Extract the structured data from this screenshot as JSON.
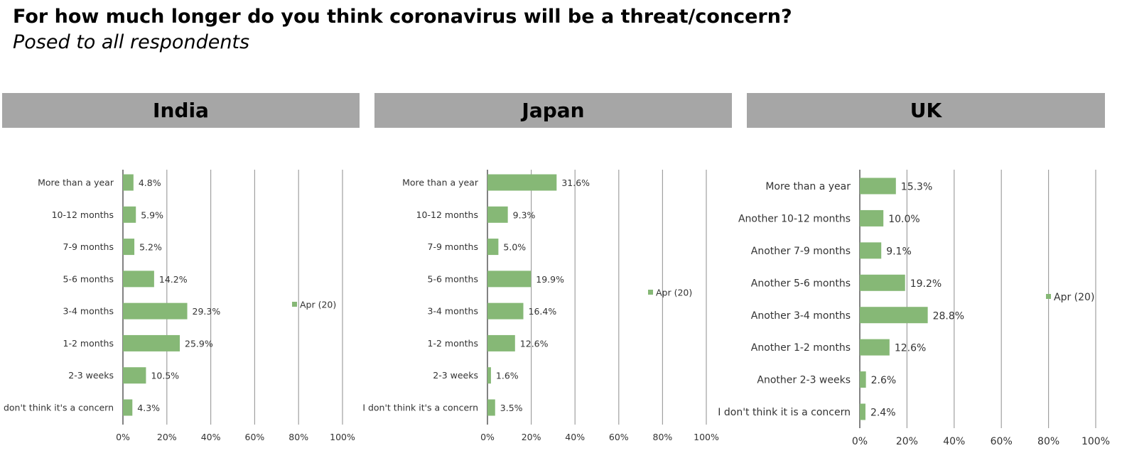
{
  "title": "For how much longer do you think coronavirus will be a threat/concern?",
  "subtitle": "Posed to all respondents",
  "colors": {
    "bar": "#86b876",
    "header_bg": "#a6a6a6",
    "grid": "#a0a0a0",
    "axis": "#595959"
  },
  "chart_data": [
    {
      "type": "bar",
      "orientation": "horizontal",
      "title": "India",
      "categories": [
        "More than a year",
        "10-12 months",
        "7-9 months",
        "5-6 months",
        "3-4 months",
        "1-2 months",
        "2-3 weeks",
        "I don't think it's a concern"
      ],
      "series": [
        {
          "name": "Apr (20)",
          "values": [
            4.8,
            5.9,
            5.2,
            14.2,
            29.3,
            25.9,
            10.5,
            4.3
          ]
        }
      ],
      "value_labels": [
        "4.8%",
        "5.9%",
        "5.2%",
        "14.2%",
        "29.3%",
        "25.9%",
        "10.5%",
        "4.3%"
      ],
      "xlim": [
        0,
        100
      ],
      "xticks": [
        "0%",
        "20%",
        "40%",
        "60%",
        "80%",
        "100%"
      ],
      "grid": true,
      "legend": "right"
    },
    {
      "type": "bar",
      "orientation": "horizontal",
      "title": "Japan",
      "categories": [
        "More than a year",
        "10-12 months",
        "7-9 months",
        "5-6 months",
        "3-4 months",
        "1-2 months",
        "2-3 weeks",
        "I don't think it's a concern"
      ],
      "series": [
        {
          "name": "Apr (20)",
          "values": [
            31.6,
            9.3,
            5.0,
            19.9,
            16.4,
            12.6,
            1.6,
            3.5
          ]
        }
      ],
      "value_labels": [
        "31.6%",
        "9.3%",
        "5.0%",
        "19.9%",
        "16.4%",
        "12.6%",
        "1.6%",
        "3.5%"
      ],
      "xlim": [
        0,
        100
      ],
      "xticks": [
        "0%",
        "20%",
        "40%",
        "60%",
        "80%",
        "100%"
      ],
      "grid": true,
      "legend": "right"
    },
    {
      "type": "bar",
      "orientation": "horizontal",
      "title": "UK",
      "categories": [
        "More than a year",
        "Another 10-12 months",
        "Another 7-9 months",
        "Another 5-6 months",
        "Another 3-4 months",
        "Another 1-2 months",
        "Another 2-3 weeks",
        "I don't think it is a concern"
      ],
      "series": [
        {
          "name": "Apr (20)",
          "values": [
            15.3,
            10.0,
            9.1,
            19.2,
            28.8,
            12.6,
            2.6,
            2.4
          ]
        }
      ],
      "value_labels": [
        "15.3%",
        "10.0%",
        "9.1%",
        "19.2%",
        "28.8%",
        "12.6%",
        "2.6%",
        "2.4%"
      ],
      "xlim": [
        0,
        100
      ],
      "xticks": [
        "0%",
        "20%",
        "40%",
        "60%",
        "80%",
        "100%"
      ],
      "grid": true,
      "legend": "right"
    }
  ]
}
